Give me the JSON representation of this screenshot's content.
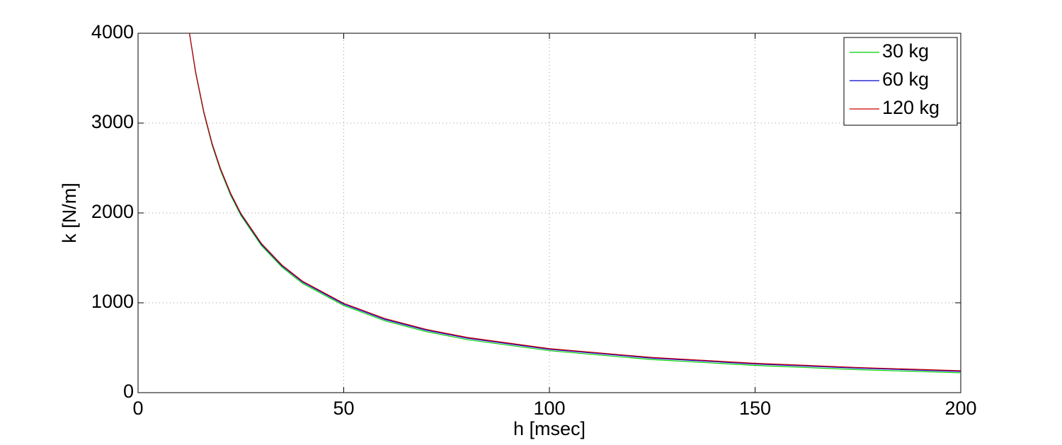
{
  "chart_data": {
    "type": "line",
    "xlabel": "h [msec]",
    "ylabel": "k [N/m]",
    "x": [
      12.5,
      14,
      16,
      18,
      20,
      22.5,
      25,
      30,
      35,
      40,
      50,
      60,
      70,
      80,
      100,
      125,
      150,
      175,
      200
    ],
    "series": [
      {
        "name": "30 kg",
        "color": "#00cc00",
        "values": [
          4000,
          3555,
          3108,
          2755,
          2478,
          2197,
          1972,
          1636,
          1396,
          1216,
          970,
          800,
          680,
          590,
          467,
          368,
          303,
          256,
          221
        ]
      },
      {
        "name": "60 kg",
        "color": "#0000cc",
        "values": [
          4000,
          3565,
          3120,
          2768,
          2492,
          2212,
          1987,
          1651,
          1411,
          1231,
          985,
          815,
          696,
          606,
          482,
          384,
          319,
          272,
          236
        ]
      },
      {
        "name": "120 kg",
        "color": "#cc0000",
        "values": [
          4000,
          3570,
          3125,
          2775,
          2500,
          2220,
          1995,
          1660,
          1420,
          1240,
          995,
          825,
          705,
          615,
          490,
          392,
          327,
          280,
          244
        ]
      }
    ],
    "xlim": [
      0,
      200
    ],
    "xticks": [
      0,
      50,
      100,
      150,
      200
    ],
    "ylim": [
      0,
      4000
    ],
    "yticks": [
      0,
      1000,
      2000,
      3000,
      4000
    ],
    "grid": true,
    "legend": "top-right"
  }
}
